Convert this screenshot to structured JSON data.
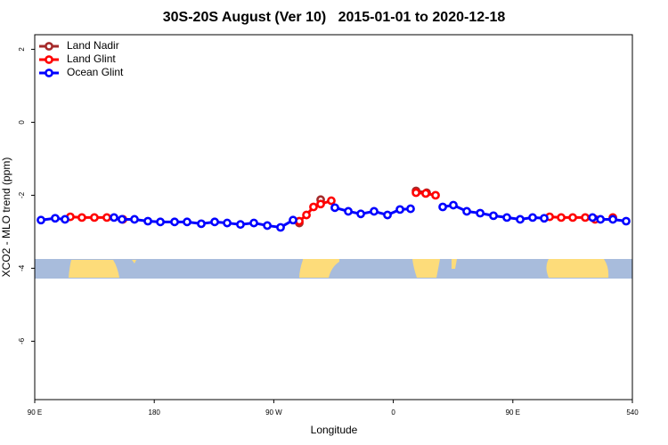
{
  "chart_data": {
    "type": "line",
    "title": "30S-20S August (Ver 10)   2015-01-01 to 2020-12-18",
    "x_label": "Longitude",
    "y_label": "XCO2 - MLO trend (ppm)",
    "xlim": [
      90,
      540
    ],
    "xticks": [
      {
        "value": 90,
        "label": "90 E"
      },
      180,
      {
        "value": 270,
        "label": "90 W"
      },
      {
        "value": 360,
        "label": "0"
      },
      {
        "value": 450,
        "label": "90 E"
      },
      540
    ],
    "ylim": [
      -7.6,
      2.4
    ],
    "yticks": [
      -6,
      -4,
      -2,
      0,
      2
    ],
    "legend": "top-left",
    "series": [
      {
        "name": "Land Nadir",
        "color": "#a52a2a",
        "x": [
          289.2,
          null,
          305.3,
          null,
          377.1,
          385.1
        ],
        "values": [
          -2.76,
          null,
          -2.12,
          null,
          -1.88,
          -1.93
        ]
      },
      {
        "name": "Land Glint",
        "color": "#ff0000",
        "x": [
          116.8,
          125.5,
          134.9,
          144.3,
          156.4,
          null,
          289.2,
          294.6,
          299.9,
          305.3,
          313.3,
          null,
          377.1,
          384.4,
          391.8,
          null,
          477.7,
          486.4,
          495.1,
          504.5,
          511.9,
          null,
          525.3
        ],
        "values": [
          -2.59,
          -2.61,
          -2.61,
          -2.61,
          -2.66,
          null,
          -2.71,
          -2.54,
          -2.32,
          -2.24,
          -2.15,
          null,
          -1.93,
          -1.95,
          -2.0,
          null,
          -2.59,
          -2.61,
          -2.61,
          -2.61,
          -2.66,
          null,
          -2.61
        ]
      },
      {
        "name": "Ocean Glint",
        "color": "#0000ff",
        "x": [
          94.7,
          105.4,
          112.8,
          null,
          149.7,
          155.7,
          165.1,
          175.2,
          184.6,
          195.3,
          204.7,
          215.4,
          225.5,
          234.9,
          244.9,
          255.0,
          265.1,
          275.1,
          284.5,
          null,
          316.0,
          326.1,
          335.5,
          345.5,
          355.6,
          365.0,
          373.0,
          null,
          397.2,
          405.2,
          415.3,
          425.4,
          435.4,
          445.5,
          455.5,
          464.9,
          473.6,
          null,
          510.0,
          516.0,
          525.3,
          535.3
        ],
        "values": [
          -2.68,
          -2.63,
          -2.66,
          null,
          -2.61,
          -2.66,
          -2.66,
          -2.71,
          -2.73,
          -2.73,
          -2.73,
          -2.78,
          -2.73,
          -2.76,
          -2.8,
          -2.76,
          -2.83,
          -2.88,
          -2.68,
          null,
          -2.34,
          -2.44,
          -2.51,
          -2.44,
          -2.54,
          -2.39,
          -2.37,
          null,
          -2.32,
          -2.27,
          -2.44,
          -2.49,
          -2.56,
          -2.61,
          -2.66,
          -2.61,
          -2.63,
          null,
          -2.61,
          -2.66,
          -2.66,
          -2.71
        ]
      }
    ]
  }
}
